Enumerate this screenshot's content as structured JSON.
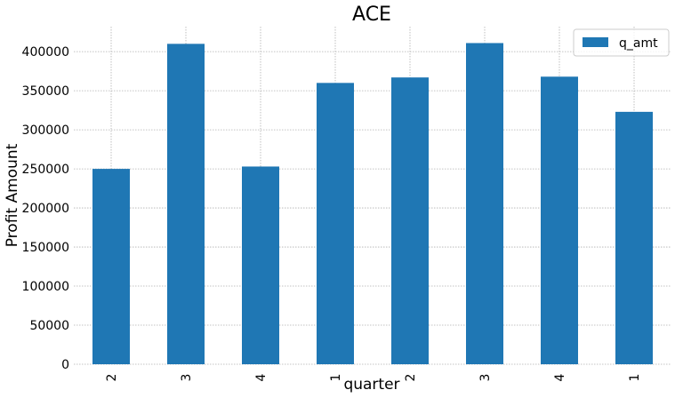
{
  "chart_data": {
    "type": "bar",
    "title": "ACE",
    "xlabel": "quarter",
    "ylabel": "Profit Amount",
    "categories": [
      "2",
      "3",
      "4",
      "1",
      "2",
      "3",
      "4",
      "1"
    ],
    "series": [
      {
        "name": "q_amt",
        "values": [
          250000,
          410000,
          253000,
          360000,
          367000,
          411000,
          368000,
          323000
        ]
      }
    ],
    "ylim": [
      0,
      432000
    ],
    "yticks": [
      "0",
      "50000",
      "100000",
      "150000",
      "200000",
      "250000",
      "300000",
      "350000",
      "400000"
    ],
    "grid": true,
    "legend": "top-right",
    "colors": {
      "bar": "#1f77b4"
    }
  }
}
